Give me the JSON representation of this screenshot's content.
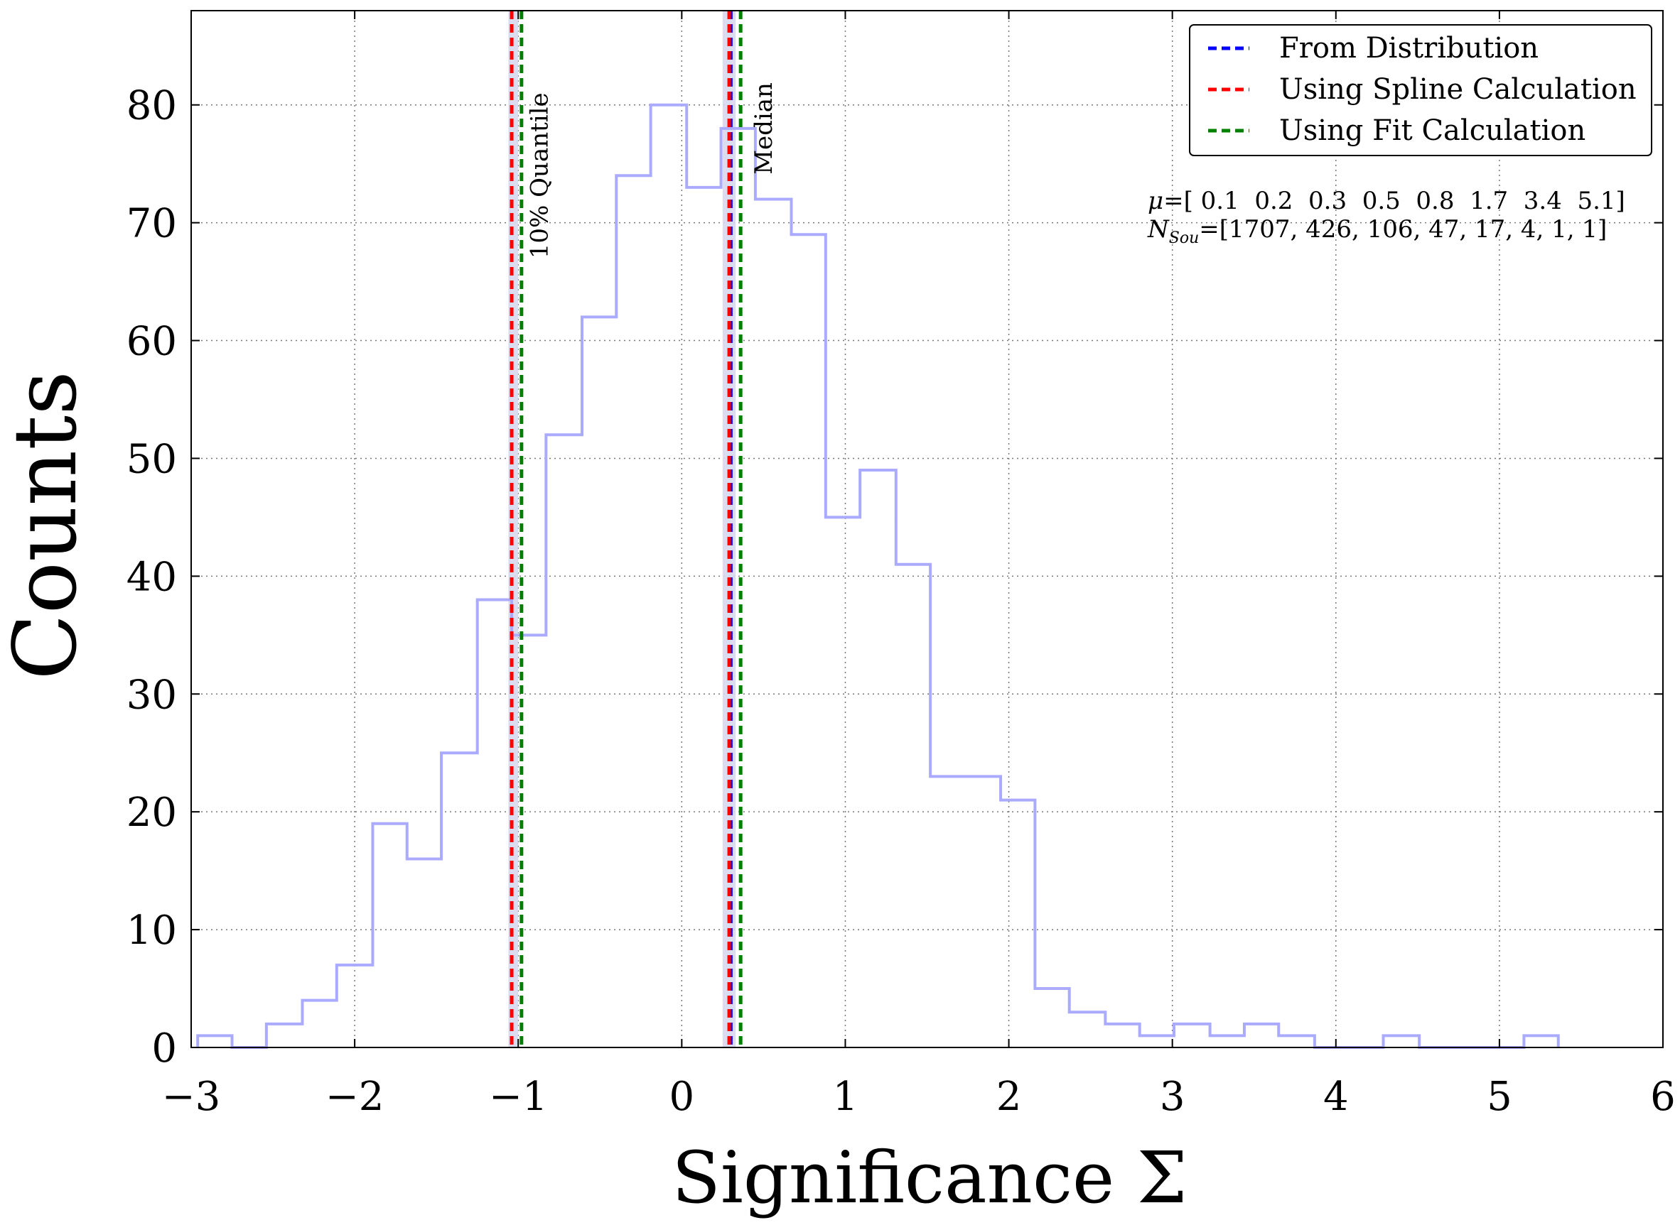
{
  "chart_data": {
    "type": "histogram",
    "xlabel": "Significance Σ",
    "ylabel": "Counts",
    "xlim": [
      -3,
      6
    ],
    "ylim": [
      0,
      88
    ],
    "xticks": [
      -3,
      -2,
      -1,
      0,
      1,
      2,
      3,
      4,
      5,
      6
    ],
    "xtick_labels": [
      "−3",
      "−2",
      "−1",
      "0",
      "1",
      "2",
      "3",
      "4",
      "5",
      "6"
    ],
    "yticks": [
      0,
      10,
      20,
      30,
      40,
      50,
      60,
      70,
      80
    ],
    "yticks_labels": [
      "0",
      "10",
      "20",
      "30",
      "40",
      "50",
      "60",
      "70",
      "80"
    ],
    "grid": true,
    "legend_position": "top-right",
    "histogram": {
      "color": "#aaaaff",
      "bin_edges": [
        -2.96,
        -2.75,
        -2.54,
        -2.32,
        -2.11,
        -1.89,
        -1.68,
        -1.47,
        -1.25,
        -1.04,
        -0.83,
        -0.61,
        -0.4,
        -0.19,
        0.03,
        0.24,
        0.45,
        0.67,
        0.88,
        1.09,
        1.31,
        1.52,
        1.73,
        1.95,
        2.16,
        2.37,
        2.59,
        2.8,
        3.01,
        3.23,
        3.44,
        3.65,
        3.87,
        4.08,
        4.29,
        4.51,
        4.72,
        4.93,
        5.15,
        5.36
      ],
      "counts": [
        1,
        0,
        2,
        4,
        7,
        19,
        16,
        25,
        38,
        35,
        52,
        62,
        74,
        80,
        73,
        78,
        72,
        69,
        45,
        49,
        41,
        23,
        23,
        21,
        5,
        3,
        2,
        1,
        2,
        1,
        2,
        1,
        0,
        0,
        1,
        0,
        0,
        0,
        1
      ]
    },
    "bands": [
      {
        "center": -1.03,
        "width": 0.06,
        "color": "#d8d8f0"
      },
      {
        "center": 0.29,
        "width": 0.08,
        "color": "#d8d8f0"
      }
    ],
    "vlines": [
      {
        "x": -1.04,
        "color": "#0000ff",
        "style": "dashed"
      },
      {
        "x": -1.04,
        "color": "#ff0000",
        "style": "dashed"
      },
      {
        "x": -0.98,
        "color": "#008000",
        "style": "dashed"
      },
      {
        "x": 0.3,
        "color": "#0000ff",
        "style": "dashed"
      },
      {
        "x": 0.29,
        "color": "#ff0000",
        "style": "dashed"
      },
      {
        "x": 0.36,
        "color": "#008000",
        "style": "dashed"
      }
    ],
    "annotations": [
      {
        "text": "10% Quantile",
        "x": -0.82,
        "y": 74,
        "rotation": -90
      },
      {
        "text": "Median",
        "x": 0.55,
        "y": 78,
        "rotation": -90
      }
    ],
    "legend": [
      {
        "label": "From Distribution",
        "color": "#0000ff"
      },
      {
        "label": "Using Spline Calculation",
        "color": "#ff0000"
      },
      {
        "label": "Using Fit Calculation",
        "color": "#008000"
      }
    ],
    "info_text": {
      "mu_symbol": "μ",
      "mu_values": "=[ 0.1  0.2  0.3  0.5  0.8  1.7  3.4  5.1]",
      "nsou_symbol": "N",
      "nsou_sub": "Sou",
      "nsou_values": "=[1707, 426, 106, 47, 17, 4, 1, 1]"
    }
  }
}
